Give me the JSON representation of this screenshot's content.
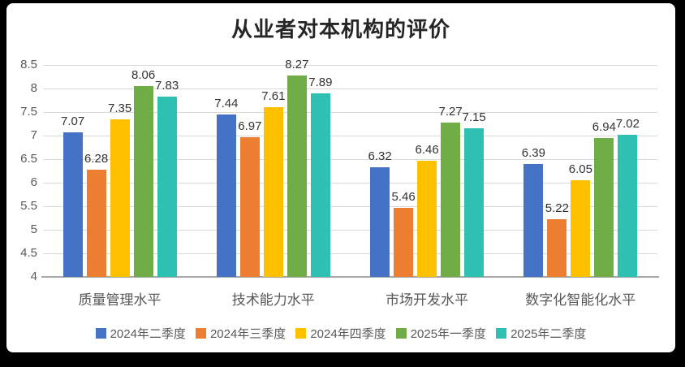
{
  "frame": {
    "background_color": "#000000",
    "card_background_color": "#ffffff"
  },
  "chart_data": {
    "type": "bar",
    "title": "从业者对本机构的评价",
    "categories": [
      "质量管理水平",
      "技术能力水平",
      "市场开发水平",
      "数字化智能化水平"
    ],
    "series": [
      {
        "name": "2024年二季度",
        "color": "#4472C4",
        "values": [
          7.07,
          7.44,
          6.32,
          6.39
        ]
      },
      {
        "name": "2024年三季度",
        "color": "#ED7D31",
        "values": [
          6.28,
          6.97,
          5.46,
          5.22
        ]
      },
      {
        "name": "2024年四季度",
        "color": "#FFC000",
        "values": [
          7.35,
          7.61,
          6.46,
          6.05
        ]
      },
      {
        "name": "2025年一季度",
        "color": "#70AD47",
        "values": [
          8.06,
          8.27,
          7.27,
          6.94
        ]
      },
      {
        "name": "2025年二季度",
        "color": "#2EC0B2",
        "values": [
          7.83,
          7.89,
          7.15,
          7.02
        ]
      }
    ],
    "ylim": [
      4,
      8.5
    ],
    "ytick_step": 0.5,
    "ytick_labels": [
      "8.5",
      "8",
      "7.5",
      "7",
      "6.5",
      "6",
      "5.5",
      "5",
      "4.5",
      "4"
    ],
    "grid": true,
    "value_labels_decimals": 2,
    "legend_position": "bottom",
    "colors": {
      "gridline": "#d9d9d9",
      "axis_line": "#a6a6a6",
      "tick_label": "#595959",
      "value_label": "#333333",
      "category_label": "#595959",
      "legend_label": "#595959",
      "title": "#262626"
    }
  }
}
